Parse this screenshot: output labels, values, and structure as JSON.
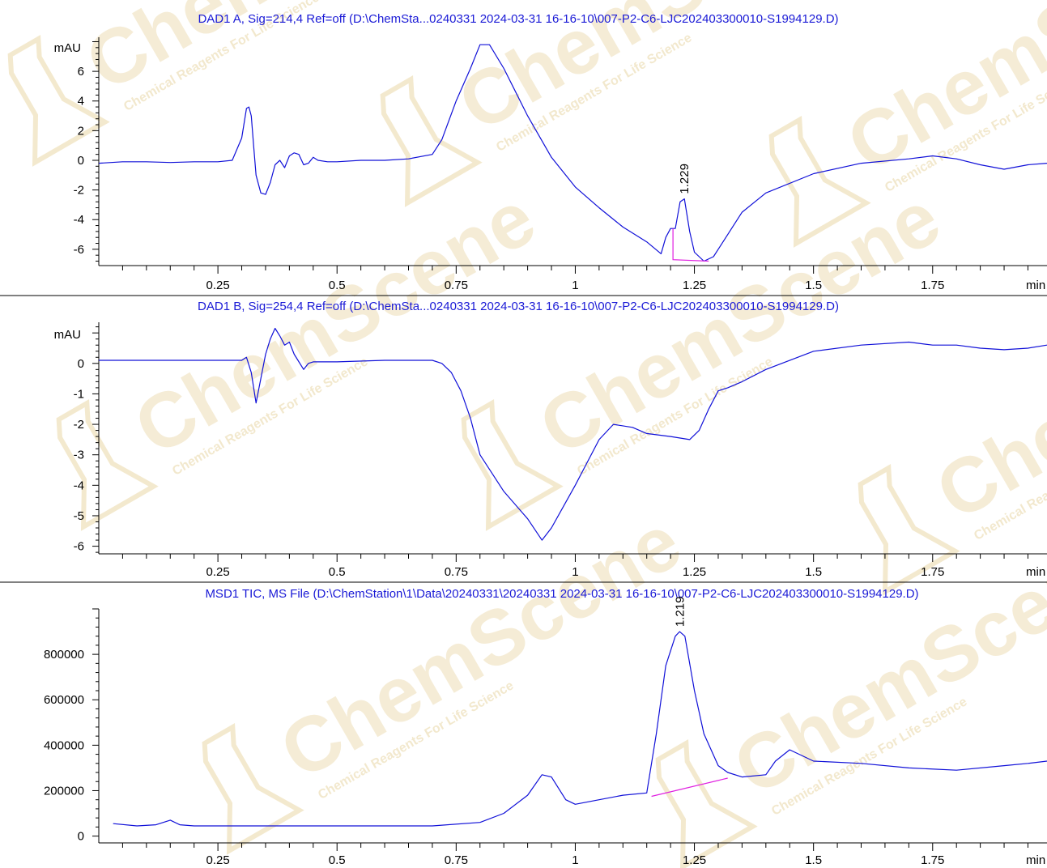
{
  "colors": {
    "trace": "#1010d8",
    "baseline": "#e020e0",
    "title": "#1a1ad6",
    "axis": "#000000",
    "divider": "#000000",
    "watermark": "#e9d7a6"
  },
  "watermark": {
    "brand": "ChemScene",
    "tagline": "Chemical Reagents For Life Science"
  },
  "chart_data": [
    {
      "type": "line",
      "title": "DAD1 A, Sig=214,4 Ref=off (D:\\ChemSta...0240331 2024-03-31 16-16-10\\007-P2-C6-LJC202403300010-S1994129.D)",
      "ylabel": "mAU",
      "xlabel": "min",
      "xlim": [
        0.0,
        1.99
      ],
      "ylim": [
        -7.1,
        8.3
      ],
      "xticks": [
        0.25,
        0.5,
        0.75,
        1,
        1.25,
        1.5,
        1.75
      ],
      "xtick_labels": [
        "0.25",
        "0.5",
        "0.75",
        "1",
        "1.25",
        "1.5",
        "1.75"
      ],
      "yticks": [
        6,
        4,
        2,
        0,
        -2,
        -4,
        -6
      ],
      "ytick_labels": [
        "6",
        "4",
        "2",
        "0",
        "-2",
        "-4",
        "-6"
      ],
      "grid": false,
      "series": [
        {
          "x": [
            0.0,
            0.05,
            0.1,
            0.15,
            0.2,
            0.25,
            0.28,
            0.3,
            0.31,
            0.315,
            0.32,
            0.325,
            0.33,
            0.34,
            0.35,
            0.36,
            0.37,
            0.38,
            0.39,
            0.4,
            0.41,
            0.42,
            0.43,
            0.44,
            0.45,
            0.46,
            0.48,
            0.5,
            0.55,
            0.6,
            0.65,
            0.7,
            0.72,
            0.75,
            0.78,
            0.8,
            0.82,
            0.85,
            0.9,
            0.95,
            1.0,
            1.05,
            1.1,
            1.15,
            1.18,
            1.19,
            1.2,
            1.21,
            1.22,
            1.229,
            1.24,
            1.25,
            1.27,
            1.29,
            1.31,
            1.35,
            1.4,
            1.5,
            1.6,
            1.7,
            1.75,
            1.8,
            1.85,
            1.9,
            1.95,
            1.99
          ],
          "y": [
            -0.2,
            -0.1,
            -0.1,
            -0.15,
            -0.1,
            -0.1,
            0.0,
            1.5,
            3.5,
            3.6,
            3.0,
            1.0,
            -1.0,
            -2.2,
            -2.3,
            -1.5,
            -0.3,
            0.0,
            -0.5,
            0.3,
            0.5,
            0.4,
            -0.3,
            -0.2,
            0.2,
            0.0,
            -0.1,
            -0.1,
            0.0,
            0.0,
            0.1,
            0.4,
            1.4,
            4.0,
            6.2,
            7.8,
            7.8,
            6.2,
            3.0,
            0.2,
            -1.8,
            -3.2,
            -4.5,
            -5.5,
            -6.3,
            -5.2,
            -4.6,
            -4.6,
            -2.8,
            -2.6,
            -4.8,
            -6.2,
            -6.8,
            -6.5,
            -5.5,
            -3.5,
            -2.2,
            -0.9,
            -0.2,
            0.1,
            0.3,
            0.1,
            -0.3,
            -0.6,
            -0.3,
            -0.2
          ]
        }
      ],
      "peak_label": {
        "text": "1.229",
        "x": 1.229,
        "y": -2.6
      },
      "baseline_segment": {
        "x": [
          1.205,
          1.205,
          1.28
        ],
        "y": [
          -4.6,
          -6.7,
          -6.8
        ]
      }
    },
    {
      "type": "line",
      "title": "DAD1 B, Sig=254,4 Ref=off (D:\\ChemSta...0240331 2024-03-31 16-16-10\\007-P2-C6-LJC202403300010-S1994129.D)",
      "ylabel": "mAU",
      "xlabel": "min",
      "xlim": [
        0.0,
        1.99
      ],
      "ylim": [
        -6.25,
        1.35
      ],
      "xticks": [
        0.25,
        0.5,
        0.75,
        1,
        1.25,
        1.5,
        1.75
      ],
      "xtick_labels": [
        "0.25",
        "0.5",
        "0.75",
        "1",
        "1.25",
        "1.5",
        "1.75"
      ],
      "yticks": [
        0,
        -1,
        -2,
        -3,
        -4,
        -5,
        -6
      ],
      "ytick_labels": [
        "0",
        "-1",
        "-2",
        "-3",
        "-4",
        "-5",
        "-6"
      ],
      "grid": false,
      "series": [
        {
          "x": [
            0.0,
            0.1,
            0.2,
            0.28,
            0.3,
            0.31,
            0.32,
            0.33,
            0.34,
            0.35,
            0.36,
            0.37,
            0.38,
            0.39,
            0.4,
            0.41,
            0.43,
            0.44,
            0.45,
            0.47,
            0.5,
            0.6,
            0.7,
            0.72,
            0.74,
            0.76,
            0.78,
            0.8,
            0.85,
            0.9,
            0.93,
            0.95,
            1.0,
            1.05,
            1.08,
            1.12,
            1.15,
            1.2,
            1.24,
            1.26,
            1.28,
            1.3,
            1.32,
            1.35,
            1.4,
            1.5,
            1.6,
            1.7,
            1.75,
            1.8,
            1.85,
            1.9,
            1.95,
            1.99
          ],
          "y": [
            0.1,
            0.1,
            0.1,
            0.1,
            0.1,
            0.2,
            -0.3,
            -1.3,
            -0.5,
            0.3,
            0.8,
            1.15,
            0.9,
            0.6,
            0.7,
            0.3,
            -0.2,
            0.0,
            0.05,
            0.05,
            0.05,
            0.1,
            0.1,
            0.0,
            -0.3,
            -0.9,
            -1.8,
            -3.0,
            -4.2,
            -5.1,
            -5.8,
            -5.4,
            -4.0,
            -2.5,
            -2.0,
            -2.1,
            -2.3,
            -2.4,
            -2.5,
            -2.2,
            -1.5,
            -0.9,
            -0.8,
            -0.6,
            -0.2,
            0.4,
            0.6,
            0.7,
            0.6,
            0.6,
            0.5,
            0.45,
            0.5,
            0.6
          ]
        }
      ]
    },
    {
      "type": "line",
      "title": "MSD1 TIC, MS File (D:\\ChemStation\\1\\Data\\20240331\\20240331 2024-03-31 16-16-10\\007-P2-C6-LJC202403300010-S1994129.D)",
      "ylabel": "",
      "xlabel": "min",
      "xlim": [
        0.0,
        1.99
      ],
      "ylim": [
        -30000,
        1000000
      ],
      "xticks": [
        0.25,
        0.5,
        0.75,
        1,
        1.25,
        1.5,
        1.75
      ],
      "xtick_labels": [
        "0.25",
        "0.5",
        "0.75",
        "1",
        "1.25",
        "1.5",
        "1.75"
      ],
      "yticks": [
        800000,
        600000,
        400000,
        200000,
        0
      ],
      "ytick_labels": [
        "800000",
        "600000",
        "400000",
        "200000",
        "0"
      ],
      "grid": false,
      "series": [
        {
          "x": [
            0.03,
            0.08,
            0.12,
            0.15,
            0.17,
            0.2,
            0.3,
            0.4,
            0.5,
            0.6,
            0.7,
            0.8,
            0.85,
            0.9,
            0.93,
            0.95,
            0.98,
            1.0,
            1.05,
            1.1,
            1.15,
            1.17,
            1.19,
            1.21,
            1.219,
            1.23,
            1.25,
            1.27,
            1.3,
            1.32,
            1.35,
            1.4,
            1.42,
            1.45,
            1.5,
            1.6,
            1.7,
            1.8,
            1.9,
            1.95,
            1.99
          ],
          "y": [
            55000,
            45000,
            50000,
            70000,
            50000,
            45000,
            45000,
            45000,
            45000,
            45000,
            45000,
            60000,
            100000,
            180000,
            270000,
            260000,
            160000,
            140000,
            160000,
            180000,
            190000,
            450000,
            750000,
            880000,
            900000,
            880000,
            640000,
            450000,
            310000,
            280000,
            260000,
            270000,
            330000,
            380000,
            330000,
            320000,
            300000,
            290000,
            310000,
            320000,
            330000
          ]
        }
      ],
      "peak_label": {
        "text": "1.219",
        "x": 1.219,
        "y": 900000
      },
      "baseline_segment": {
        "x": [
          1.16,
          1.32
        ],
        "y": [
          175000,
          255000
        ]
      }
    }
  ]
}
